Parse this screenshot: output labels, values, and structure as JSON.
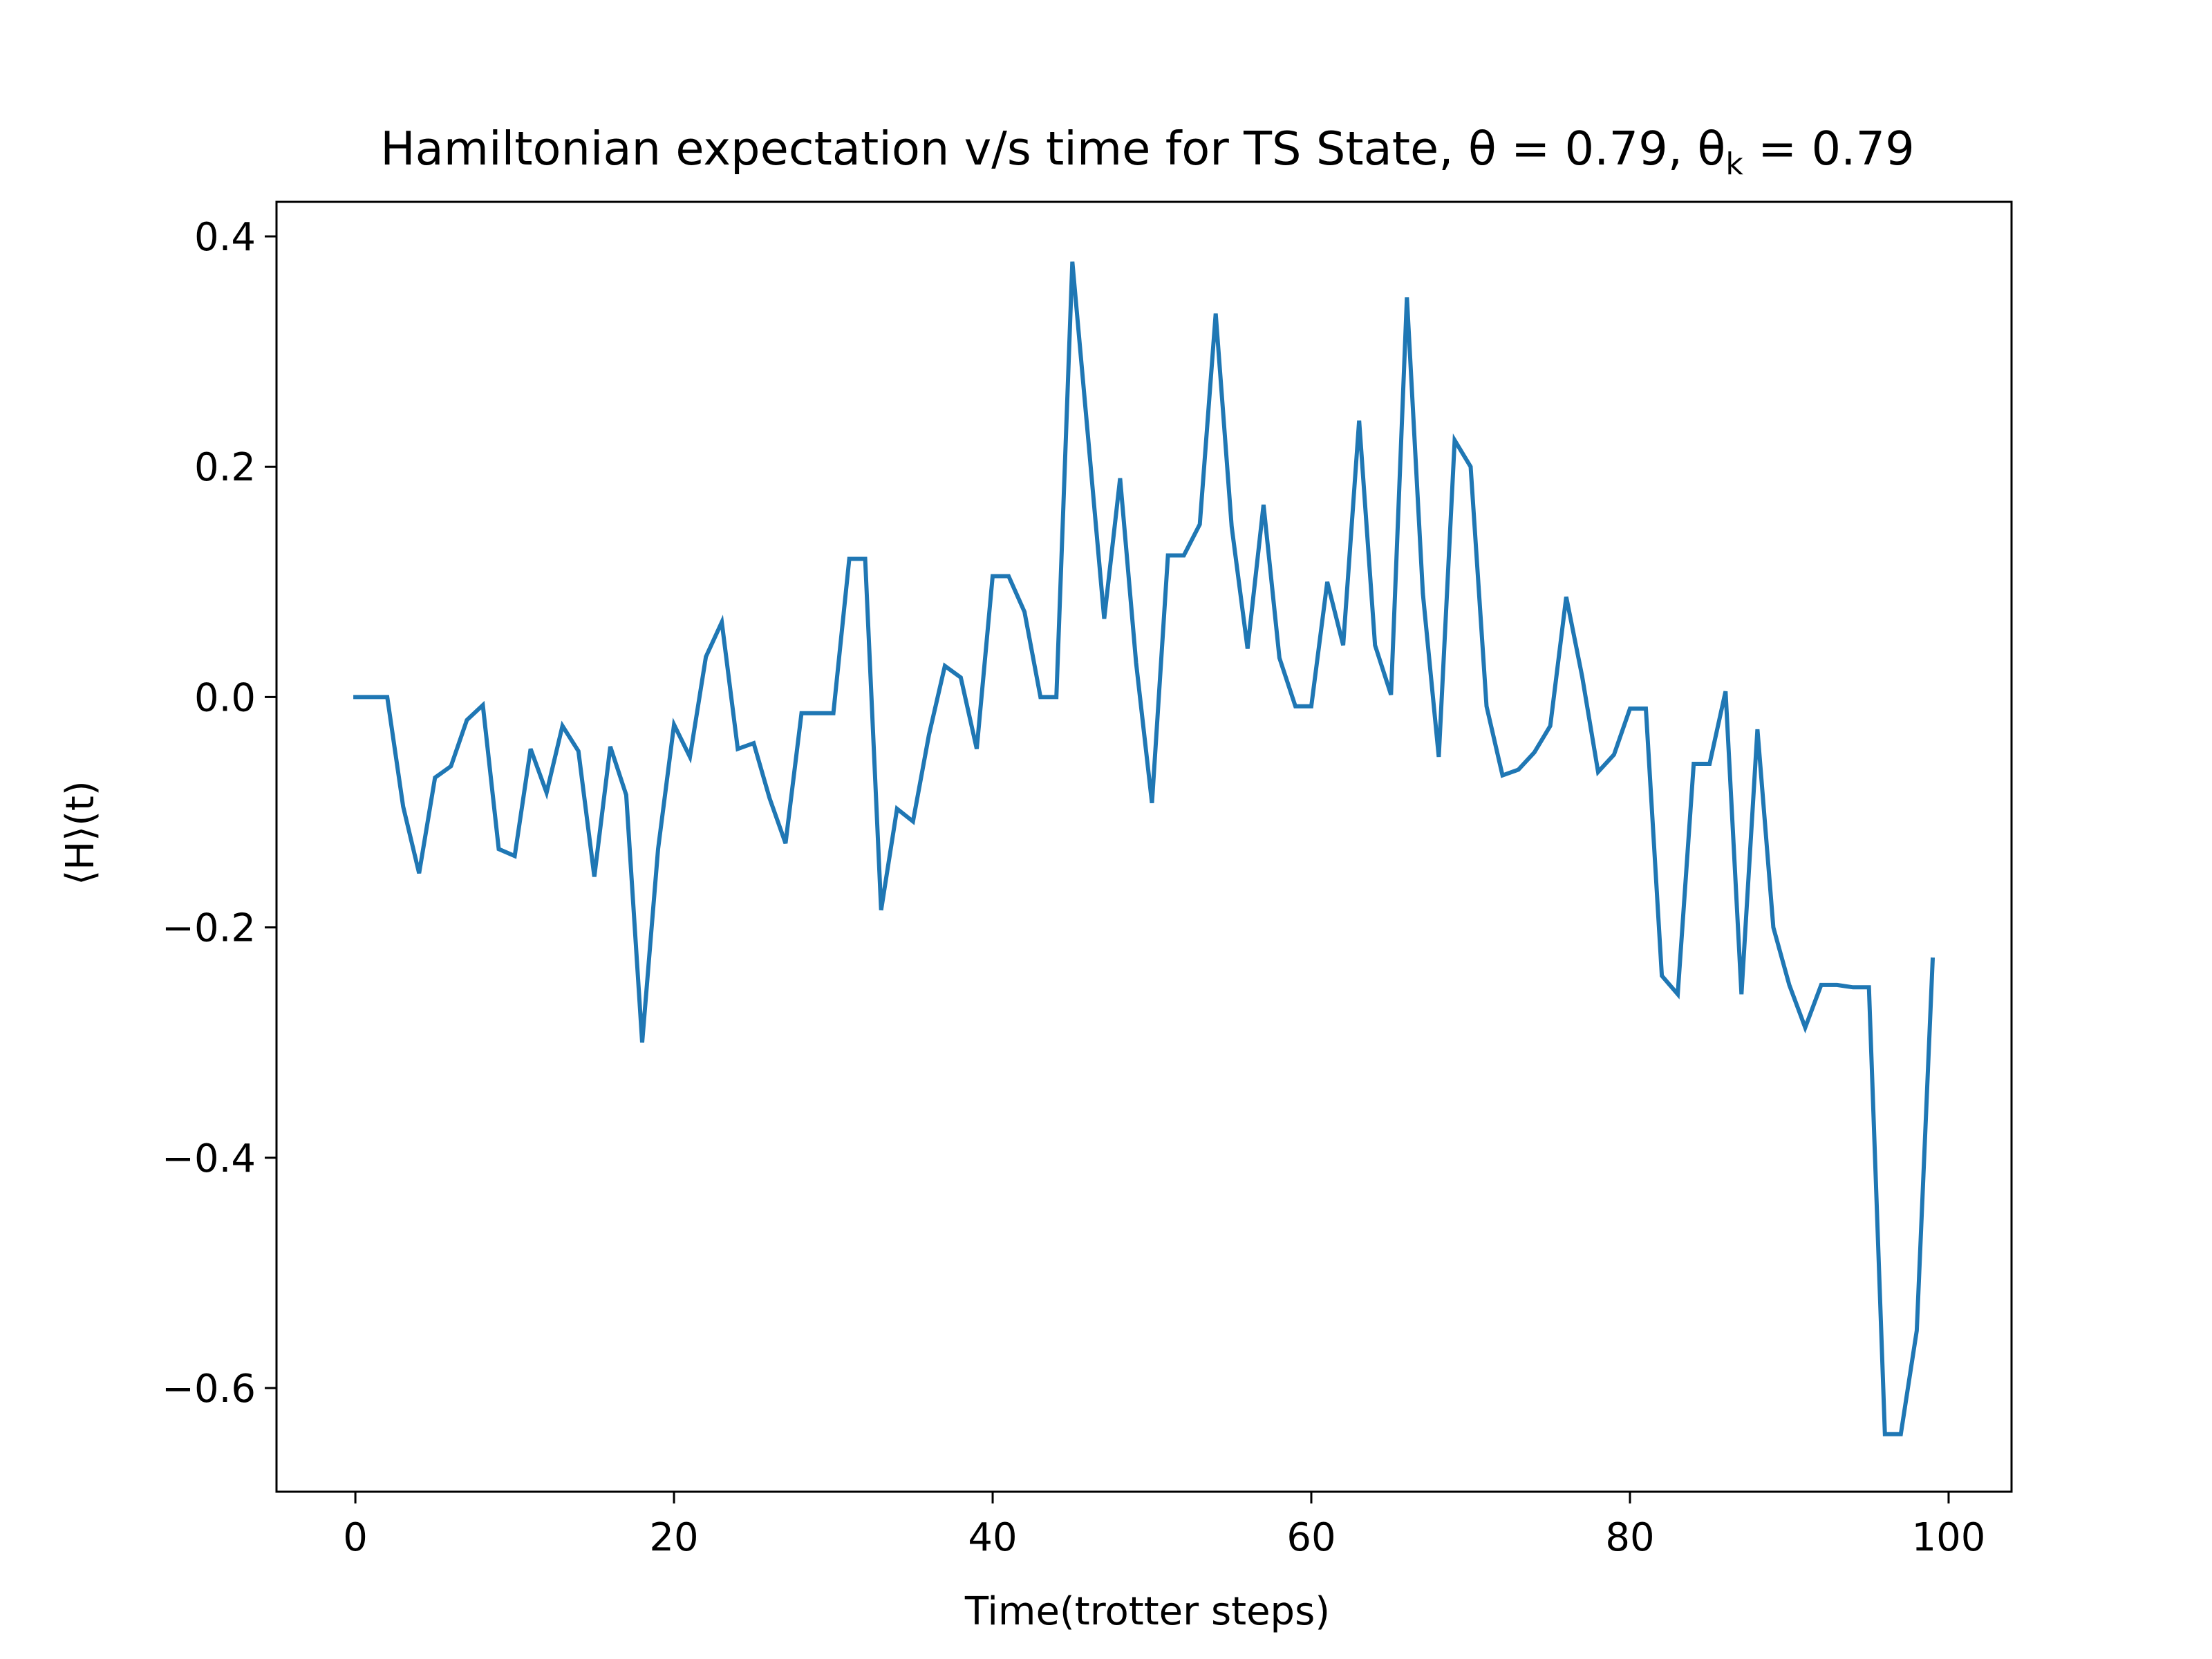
{
  "chart_data": {
    "type": "line",
    "title": "Hamiltonian expectation v/s time for TS State, θ = 0.79,  θ",
    "title_subscript": "k",
    "title_tail": " = 0.79",
    "xlabel": "Time(trotter steps)",
    "ylabel": "⟨H⟩(t)",
    "xlim": [
      -4.95,
      103.95
    ],
    "ylim": [
      -0.69,
      0.43
    ],
    "xticks": [
      0,
      20,
      40,
      60,
      80,
      100
    ],
    "xtick_labels": [
      "0",
      "20",
      "40",
      "60",
      "80",
      "100"
    ],
    "yticks": [
      -0.6,
      -0.4,
      -0.2,
      0.0,
      0.2,
      0.4
    ],
    "ytick_labels": [
      "−0.6",
      "−0.4",
      "−0.2",
      "0.0",
      "0.2",
      "0.4"
    ],
    "grid": false,
    "line_color": "#1f77b4",
    "series": [
      {
        "x": [
          0,
          1,
          2,
          3,
          4,
          5,
          6,
          7,
          8,
          9,
          10,
          11,
          12,
          13,
          14,
          15,
          16,
          17,
          18,
          19,
          20,
          21,
          22,
          23,
          24,
          25,
          26,
          27,
          28,
          29,
          30,
          31,
          32,
          33,
          34,
          35,
          36,
          37,
          38,
          39,
          40,
          41,
          42,
          43,
          44,
          45,
          46,
          47,
          48,
          49,
          50,
          51,
          52,
          53,
          54,
          55,
          56,
          57,
          58,
          59,
          60,
          61,
          62,
          63,
          64,
          65,
          66,
          67,
          68,
          69,
          70,
          71,
          72,
          73,
          74,
          75,
          76,
          77,
          78,
          79,
          80,
          81,
          82,
          83,
          84,
          85,
          86,
          87,
          88,
          89,
          90,
          91,
          92,
          93,
          94,
          95,
          96,
          97,
          98,
          99
        ],
        "values": [
          0.0,
          0.0,
          0.0,
          -0.095,
          -0.153,
          -0.07,
          -0.06,
          -0.02,
          -0.007,
          -0.132,
          -0.138,
          -0.045,
          -0.083,
          -0.025,
          -0.047,
          -0.156,
          -0.043,
          -0.085,
          -0.3,
          -0.132,
          -0.024,
          -0.052,
          0.035,
          0.065,
          -0.045,
          -0.04,
          -0.088,
          -0.127,
          -0.014,
          -0.014,
          -0.014,
          0.12,
          0.12,
          -0.185,
          -0.097,
          -0.108,
          -0.033,
          0.027,
          0.017,
          -0.045,
          0.105,
          0.105,
          0.074,
          0.0,
          0.0,
          0.378,
          0.224,
          0.068,
          0.19,
          0.03,
          -0.092,
          0.123,
          0.123,
          0.15,
          0.333,
          0.148,
          0.042,
          0.167,
          0.034,
          -0.008,
          -0.008,
          0.1,
          0.045,
          0.24,
          0.045,
          0.002,
          0.347,
          0.09,
          -0.052,
          0.223,
          0.2,
          -0.008,
          -0.068,
          -0.063,
          -0.048,
          -0.025,
          0.087,
          0.018,
          -0.065,
          -0.05,
          -0.01,
          -0.01,
          -0.242,
          -0.258,
          -0.058,
          -0.058,
          0.005,
          -0.258,
          -0.028,
          -0.2,
          -0.25,
          -0.287,
          -0.25,
          -0.25,
          -0.252,
          -0.252,
          -0.64,
          -0.64,
          -0.55,
          -0.228
        ]
      }
    ]
  }
}
